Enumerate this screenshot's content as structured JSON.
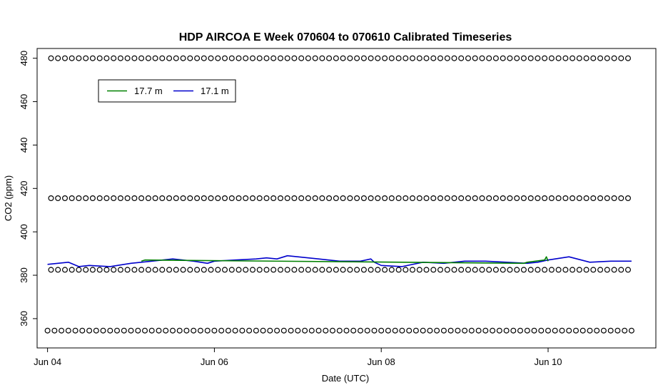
{
  "chart_data": {
    "type": "line",
    "title": "HDP AIRCOA E  Week 070604 to 070610  Calibrated Timeseries",
    "xlabel": "Date (UTC)",
    "ylabel": "CO2 (ppm)",
    "xlim": [
      "2007-06-03T21:00",
      "2007-06-11T07:00"
    ],
    "ylim": [
      346.5,
      484.5
    ],
    "x_ticks": [
      "2007-06-04",
      "2007-06-06",
      "2007-06-08",
      "2007-06-10"
    ],
    "x_tick_labels": [
      "Jun 04",
      "Jun 06",
      "Jun 08",
      "Jun 10"
    ],
    "y_ticks": [
      360,
      380,
      400,
      420,
      440,
      460,
      480
    ],
    "legend": {
      "position": "top-left",
      "entries": [
        "17.7 m",
        "17.1 m"
      ]
    },
    "colors": {
      "17.7 m": "#008000",
      "17.1 m": "#0000cc",
      "markers": "#000000"
    },
    "marker_rows": [
      {
        "y": 480,
        "x_start": "2007-06-04T01:00",
        "x_end": "2007-06-11T00:00"
      },
      {
        "y": 415.5,
        "x_start": "2007-06-04T01:00",
        "x_end": "2007-06-11T00:00"
      },
      {
        "y": 382.5,
        "x_start": "2007-06-04T01:00",
        "x_end": "2007-06-11T00:00"
      },
      {
        "y": 354.5,
        "x_start": "2007-06-04T00:00",
        "x_end": "2007-06-11T00:00"
      }
    ],
    "series": [
      {
        "name": "17.1 m",
        "x": [
          "2007-06-04T00:00",
          "2007-06-04T06:00",
          "2007-06-04T09:00",
          "2007-06-04T12:00",
          "2007-06-04T18:00",
          "2007-06-05T00:00",
          "2007-06-05T06:00",
          "2007-06-05T12:00",
          "2007-06-05T18:00",
          "2007-06-05T22:00",
          "2007-06-06T00:00",
          "2007-06-06T06:00",
          "2007-06-06T12:00",
          "2007-06-06T15:00",
          "2007-06-06T18:00",
          "2007-06-06T21:00",
          "2007-06-07T00:00",
          "2007-06-07T06:00",
          "2007-06-07T12:00",
          "2007-06-07T18:00",
          "2007-06-07T21:00",
          "2007-06-07T22:00",
          "2007-06-08T00:00",
          "2007-06-08T06:00",
          "2007-06-08T12:00",
          "2007-06-08T18:00",
          "2007-06-09T00:00",
          "2007-06-09T06:00",
          "2007-06-09T12:00",
          "2007-06-09T18:00",
          "2007-06-09T21:00",
          "2007-06-10T00:00",
          "2007-06-10T06:00",
          "2007-06-10T12:00",
          "2007-06-10T18:00",
          "2007-06-11T00:00"
        ],
        "y": [
          385,
          386,
          384,
          384.5,
          384,
          385.5,
          386.5,
          387.5,
          386.5,
          385.5,
          386.5,
          387,
          387.5,
          388,
          387.5,
          389,
          388.5,
          387.5,
          386.5,
          386.5,
          387.5,
          386,
          384.5,
          384,
          386,
          385.5,
          386.5,
          386.5,
          386,
          385.5,
          386,
          387,
          388.5,
          386,
          386.5,
          386.5
        ]
      },
      {
        "name": "17.7 m",
        "x": [
          "2007-06-05T03:00",
          "2007-06-05T04:00",
          "2007-06-09T17:00",
          "2007-06-09T18:00",
          "2007-06-09T23:00",
          "2007-06-09T23:30",
          "2007-06-10T00:00"
        ],
        "y": [
          386.5,
          387,
          385.5,
          386,
          387,
          388.5,
          386.5
        ]
      }
    ]
  }
}
